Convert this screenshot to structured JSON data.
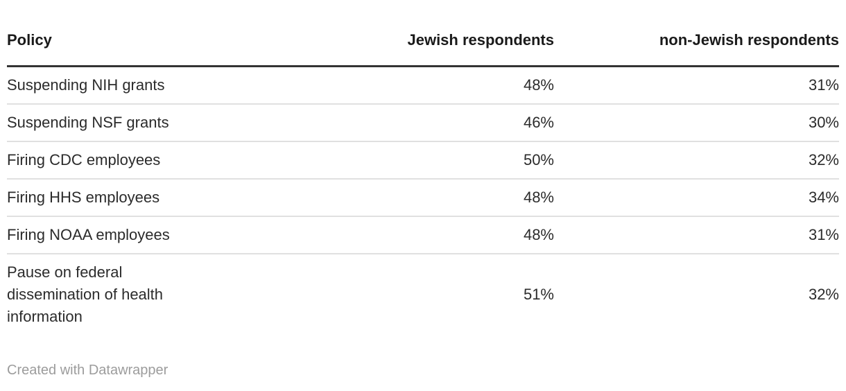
{
  "chart_data": {
    "type": "table",
    "columns": [
      "Policy",
      "Jewish respondents",
      "non-Jewish respondents"
    ],
    "rows": [
      [
        "Suspending NIH grants",
        "48%",
        "31%"
      ],
      [
        "Suspending NSF grants",
        "46%",
        "30%"
      ],
      [
        "Firing CDC employees",
        "50%",
        "32%"
      ],
      [
        "Firing HHS employees",
        "48%",
        "34%"
      ],
      [
        "Firing NOAA employees",
        "48%",
        "31%"
      ],
      [
        "Pause on federal dissemination of health information",
        "51%",
        "32%"
      ]
    ]
  },
  "footer": {
    "attribution": "Created with Datawrapper"
  },
  "colors": {
    "background": "#ffffff",
    "header_text": "#1a1a1a",
    "body_text": "#2b2b2b",
    "header_rule": "#333333",
    "row_divider": "#e0e0e0",
    "attribution_text": "#9c9c9c"
  }
}
